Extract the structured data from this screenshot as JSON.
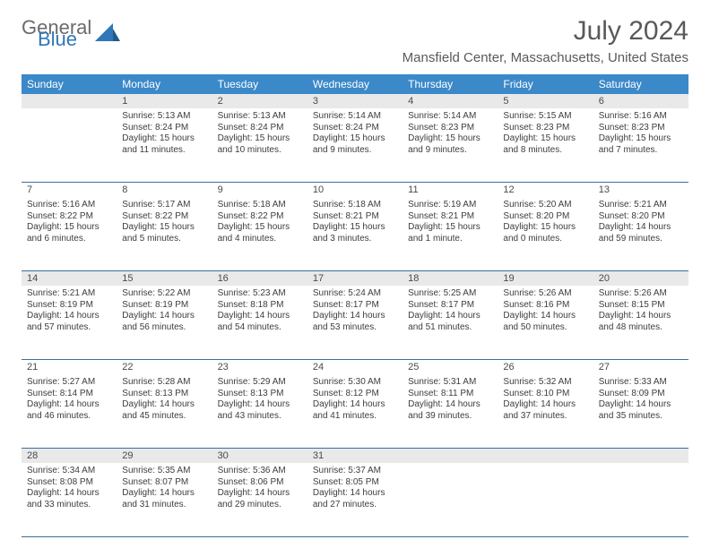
{
  "logo": {
    "general": "General",
    "blue": "Blue"
  },
  "title": "July 2024",
  "location": "Mansfield Center, Massachusetts, United States",
  "colors": {
    "header_bg": "#3b89c9",
    "header_text": "#ffffff",
    "daynum_bg_shaded": "#e9e9e9",
    "border": "#3b6ea0",
    "title_color": "#595959",
    "logo_gray": "#6b6b6b",
    "logo_blue": "#2f77b8"
  },
  "weekdays": [
    "Sunday",
    "Monday",
    "Tuesday",
    "Wednesday",
    "Thursday",
    "Friday",
    "Saturday"
  ],
  "weeks": [
    {
      "shaded": true,
      "days": [
        {
          "num": "",
          "lines": [
            "",
            "",
            "",
            ""
          ]
        },
        {
          "num": "1",
          "lines": [
            "Sunrise: 5:13 AM",
            "Sunset: 8:24 PM",
            "Daylight: 15 hours",
            "and 11 minutes."
          ]
        },
        {
          "num": "2",
          "lines": [
            "Sunrise: 5:13 AM",
            "Sunset: 8:24 PM",
            "Daylight: 15 hours",
            "and 10 minutes."
          ]
        },
        {
          "num": "3",
          "lines": [
            "Sunrise: 5:14 AM",
            "Sunset: 8:24 PM",
            "Daylight: 15 hours",
            "and 9 minutes."
          ]
        },
        {
          "num": "4",
          "lines": [
            "Sunrise: 5:14 AM",
            "Sunset: 8:23 PM",
            "Daylight: 15 hours",
            "and 9 minutes."
          ]
        },
        {
          "num": "5",
          "lines": [
            "Sunrise: 5:15 AM",
            "Sunset: 8:23 PM",
            "Daylight: 15 hours",
            "and 8 minutes."
          ]
        },
        {
          "num": "6",
          "lines": [
            "Sunrise: 5:16 AM",
            "Sunset: 8:23 PM",
            "Daylight: 15 hours",
            "and 7 minutes."
          ]
        }
      ]
    },
    {
      "shaded": false,
      "days": [
        {
          "num": "7",
          "lines": [
            "Sunrise: 5:16 AM",
            "Sunset: 8:22 PM",
            "Daylight: 15 hours",
            "and 6 minutes."
          ]
        },
        {
          "num": "8",
          "lines": [
            "Sunrise: 5:17 AM",
            "Sunset: 8:22 PM",
            "Daylight: 15 hours",
            "and 5 minutes."
          ]
        },
        {
          "num": "9",
          "lines": [
            "Sunrise: 5:18 AM",
            "Sunset: 8:22 PM",
            "Daylight: 15 hours",
            "and 4 minutes."
          ]
        },
        {
          "num": "10",
          "lines": [
            "Sunrise: 5:18 AM",
            "Sunset: 8:21 PM",
            "Daylight: 15 hours",
            "and 3 minutes."
          ]
        },
        {
          "num": "11",
          "lines": [
            "Sunrise: 5:19 AM",
            "Sunset: 8:21 PM",
            "Daylight: 15 hours",
            "and 1 minute."
          ]
        },
        {
          "num": "12",
          "lines": [
            "Sunrise: 5:20 AM",
            "Sunset: 8:20 PM",
            "Daylight: 15 hours",
            "and 0 minutes."
          ]
        },
        {
          "num": "13",
          "lines": [
            "Sunrise: 5:21 AM",
            "Sunset: 8:20 PM",
            "Daylight: 14 hours",
            "and 59 minutes."
          ]
        }
      ]
    },
    {
      "shaded": true,
      "days": [
        {
          "num": "14",
          "lines": [
            "Sunrise: 5:21 AM",
            "Sunset: 8:19 PM",
            "Daylight: 14 hours",
            "and 57 minutes."
          ]
        },
        {
          "num": "15",
          "lines": [
            "Sunrise: 5:22 AM",
            "Sunset: 8:19 PM",
            "Daylight: 14 hours",
            "and 56 minutes."
          ]
        },
        {
          "num": "16",
          "lines": [
            "Sunrise: 5:23 AM",
            "Sunset: 8:18 PM",
            "Daylight: 14 hours",
            "and 54 minutes."
          ]
        },
        {
          "num": "17",
          "lines": [
            "Sunrise: 5:24 AM",
            "Sunset: 8:17 PM",
            "Daylight: 14 hours",
            "and 53 minutes."
          ]
        },
        {
          "num": "18",
          "lines": [
            "Sunrise: 5:25 AM",
            "Sunset: 8:17 PM",
            "Daylight: 14 hours",
            "and 51 minutes."
          ]
        },
        {
          "num": "19",
          "lines": [
            "Sunrise: 5:26 AM",
            "Sunset: 8:16 PM",
            "Daylight: 14 hours",
            "and 50 minutes."
          ]
        },
        {
          "num": "20",
          "lines": [
            "Sunrise: 5:26 AM",
            "Sunset: 8:15 PM",
            "Daylight: 14 hours",
            "and 48 minutes."
          ]
        }
      ]
    },
    {
      "shaded": false,
      "days": [
        {
          "num": "21",
          "lines": [
            "Sunrise: 5:27 AM",
            "Sunset: 8:14 PM",
            "Daylight: 14 hours",
            "and 46 minutes."
          ]
        },
        {
          "num": "22",
          "lines": [
            "Sunrise: 5:28 AM",
            "Sunset: 8:13 PM",
            "Daylight: 14 hours",
            "and 45 minutes."
          ]
        },
        {
          "num": "23",
          "lines": [
            "Sunrise: 5:29 AM",
            "Sunset: 8:13 PM",
            "Daylight: 14 hours",
            "and 43 minutes."
          ]
        },
        {
          "num": "24",
          "lines": [
            "Sunrise: 5:30 AM",
            "Sunset: 8:12 PM",
            "Daylight: 14 hours",
            "and 41 minutes."
          ]
        },
        {
          "num": "25",
          "lines": [
            "Sunrise: 5:31 AM",
            "Sunset: 8:11 PM",
            "Daylight: 14 hours",
            "and 39 minutes."
          ]
        },
        {
          "num": "26",
          "lines": [
            "Sunrise: 5:32 AM",
            "Sunset: 8:10 PM",
            "Daylight: 14 hours",
            "and 37 minutes."
          ]
        },
        {
          "num": "27",
          "lines": [
            "Sunrise: 5:33 AM",
            "Sunset: 8:09 PM",
            "Daylight: 14 hours",
            "and 35 minutes."
          ]
        }
      ]
    },
    {
      "shaded": true,
      "days": [
        {
          "num": "28",
          "lines": [
            "Sunrise: 5:34 AM",
            "Sunset: 8:08 PM",
            "Daylight: 14 hours",
            "and 33 minutes."
          ]
        },
        {
          "num": "29",
          "lines": [
            "Sunrise: 5:35 AM",
            "Sunset: 8:07 PM",
            "Daylight: 14 hours",
            "and 31 minutes."
          ]
        },
        {
          "num": "30",
          "lines": [
            "Sunrise: 5:36 AM",
            "Sunset: 8:06 PM",
            "Daylight: 14 hours",
            "and 29 minutes."
          ]
        },
        {
          "num": "31",
          "lines": [
            "Sunrise: 5:37 AM",
            "Sunset: 8:05 PM",
            "Daylight: 14 hours",
            "and 27 minutes."
          ]
        },
        {
          "num": "",
          "lines": [
            "",
            "",
            "",
            ""
          ]
        },
        {
          "num": "",
          "lines": [
            "",
            "",
            "",
            ""
          ]
        },
        {
          "num": "",
          "lines": [
            "",
            "",
            "",
            ""
          ]
        }
      ]
    }
  ]
}
